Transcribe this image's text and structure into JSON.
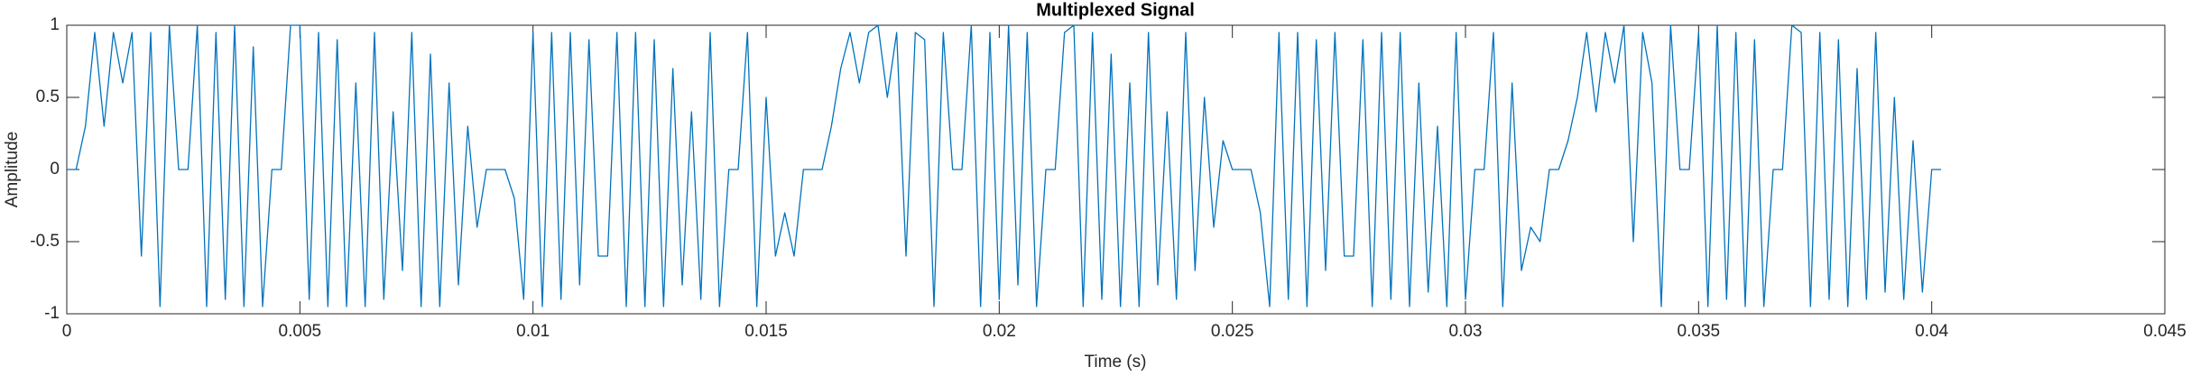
{
  "chart_data": {
    "type": "line",
    "title": "Multiplexed Signal",
    "x_label": "Time (s)",
    "y_label": "Amplitude",
    "color": "#0072BD",
    "xlim": [
      0,
      0.045
    ],
    "xticks": [
      0,
      0.005,
      0.01,
      0.015,
      0.02,
      0.025,
      0.03,
      0.035,
      0.04,
      0.045
    ],
    "ylim": [
      -1,
      1
    ],
    "yticks": [
      -1,
      -0.5,
      0,
      0.5,
      1
    ],
    "grid": false,
    "x": [
      0,
      0.0002,
      0.0004,
      0.0006,
      0.0008,
      0.001,
      0.0012,
      0.0014,
      0.0016,
      0.0018,
      0.002,
      0.0022,
      0.0024,
      0.0026,
      0.0028,
      0.003,
      0.0032,
      0.0034,
      0.0036,
      0.0038,
      0.004,
      0.0042,
      0.0044,
      0.0046,
      0.0048,
      0.005,
      0.0052,
      0.0054,
      0.0056,
      0.0058,
      0.006,
      0.0062,
      0.0064,
      0.0066,
      0.0068,
      0.007,
      0.0072,
      0.0074,
      0.0076,
      0.0078,
      0.008,
      0.0082,
      0.0084,
      0.0086,
      0.0088,
      0.009,
      0.0092,
      0.0094,
      0.0096,
      0.0098,
      0.01,
      0.0102,
      0.0104,
      0.0106,
      0.0108,
      0.011,
      0.0112,
      0.0114,
      0.0116,
      0.0118,
      0.012,
      0.0122,
      0.0124,
      0.0126,
      0.0128,
      0.013,
      0.0132,
      0.0134,
      0.0136,
      0.0138,
      0.014,
      0.0142,
      0.0144,
      0.0146,
      0.0148,
      0.015,
      0.0152,
      0.0154,
      0.0156,
      0.0158,
      0.016,
      0.0162,
      0.0164,
      0.0166,
      0.0168,
      0.017,
      0.0172,
      0.0174,
      0.0176,
      0.0178,
      0.018,
      0.0182,
      0.0184,
      0.0186,
      0.0188,
      0.019,
      0.0192,
      0.0194,
      0.0196,
      0.0198,
      0.02,
      0.0202,
      0.0204,
      0.0206,
      0.0208,
      0.021,
      0.0212,
      0.0214,
      0.0216,
      0.0218,
      0.022,
      0.0222,
      0.0224,
      0.0226,
      0.0228,
      0.023,
      0.0232,
      0.0234,
      0.0236,
      0.0238,
      0.024,
      0.0242,
      0.0244,
      0.0246,
      0.0248,
      0.025,
      0.0252,
      0.0254,
      0.0256,
      0.0258,
      0.026,
      0.0262,
      0.0264,
      0.0266,
      0.0268,
      0.027,
      0.0272,
      0.0274,
      0.0276,
      0.0278,
      0.028,
      0.0282,
      0.0284,
      0.0286,
      0.0288,
      0.029,
      0.0292,
      0.0294,
      0.0296,
      0.0298,
      0.03,
      0.0302,
      0.0304,
      0.0306,
      0.0308,
      0.031,
      0.0312,
      0.0314,
      0.0316,
      0.0318,
      0.032,
      0.0322,
      0.0324,
      0.0326,
      0.0328,
      0.033,
      0.0332,
      0.0334,
      0.0336,
      0.0338,
      0.034,
      0.0342,
      0.0344,
      0.0346,
      0.0348,
      0.035,
      0.0352,
      0.0354,
      0.0356,
      0.0358,
      0.036,
      0.0362,
      0.0364,
      0.0366,
      0.0368,
      0.037,
      0.0372,
      0.0374,
      0.0376,
      0.0378,
      0.038,
      0.0382,
      0.0384,
      0.0386,
      0.0388,
      0.039,
      0.0392,
      0.0394,
      0.0396,
      0.0398,
      0.04,
      0.0402
    ],
    "values": [
      0,
      0,
      0.3,
      0.95,
      0.3,
      0.95,
      0.6,
      0.95,
      -0.6,
      0.95,
      -0.95,
      1,
      0,
      0,
      1,
      -0.95,
      0.95,
      -0.9,
      1,
      -0.95,
      0.85,
      -0.95,
      0,
      0,
      1,
      1,
      -0.9,
      0.95,
      -0.95,
      0.9,
      -0.95,
      0.6,
      -0.95,
      0.95,
      -0.9,
      0.4,
      -0.7,
      0.95,
      -0.95,
      0.8,
      -0.95,
      0.6,
      -0.8,
      0.3,
      -0.4,
      0,
      0,
      0,
      -0.2,
      -0.9,
      0.95,
      -0.95,
      0.95,
      -0.9,
      0.95,
      -0.8,
      0.9,
      -0.6,
      -0.6,
      0.95,
      -0.95,
      0.95,
      -0.95,
      0.9,
      -0.95,
      0.7,
      -0.8,
      0.4,
      -0.9,
      0.95,
      -0.95,
      0,
      0,
      0.95,
      -0.95,
      0.5,
      -0.6,
      -0.3,
      -0.6,
      0,
      0,
      0,
      0.3,
      0.7,
      0.95,
      0.6,
      0.95,
      1,
      0.5,
      0.95,
      -0.6,
      0.95,
      0.9,
      -0.95,
      0.95,
      0,
      0,
      1,
      -0.95,
      0.95,
      -0.9,
      1,
      -0.8,
      0.95,
      -0.95,
      0,
      0,
      0.95,
      1,
      -0.95,
      0.95,
      -0.9,
      0.8,
      -0.95,
      0.6,
      -0.95,
      0.95,
      -0.8,
      0.4,
      -0.9,
      0.95,
      -0.7,
      0.5,
      -0.4,
      0.2,
      0,
      0,
      0,
      -0.3,
      -0.95,
      0.95,
      -0.9,
      0.95,
      -0.95,
      0.9,
      -0.7,
      0.95,
      -0.6,
      -0.6,
      0.9,
      -0.95,
      0.95,
      -0.9,
      0.95,
      -0.95,
      0.6,
      -0.85,
      0.3,
      -0.95,
      0.95,
      -0.9,
      0,
      0,
      0.95,
      -0.95,
      0.6,
      -0.7,
      -0.4,
      -0.5,
      0,
      0,
      0.2,
      0.5,
      0.95,
      0.4,
      0.95,
      0.6,
      1,
      -0.5,
      0.95,
      0.6,
      -0.95,
      1,
      0,
      0,
      0.95,
      -0.95,
      1,
      -0.9,
      0.95,
      -0.95,
      0.9,
      -0.95,
      0,
      0,
      1,
      0.95,
      -0.95,
      0.95,
      -0.9,
      0.9,
      -0.95,
      0.7,
      -0.9,
      0.95,
      -0.85,
      0.5,
      -0.9,
      0.2,
      -0.85,
      0,
      0
    ]
  }
}
